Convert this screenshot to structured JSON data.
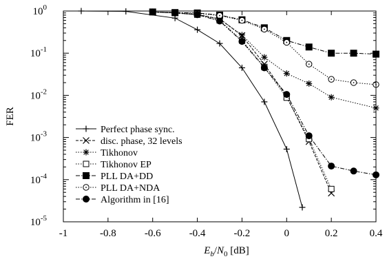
{
  "chart_data": {
    "type": "line",
    "title": "",
    "xlabel": "E_b/N_0 [dB]",
    "xlabel_parts": {
      "e": "E",
      "b": "b",
      "slash": "/",
      "n": "N",
      "zero": "0",
      "unit": " [dB]"
    },
    "ylabel": "FER",
    "xlim": [
      -1,
      0.4
    ],
    "ylim": [
      1e-05,
      1
    ],
    "yscale": "log",
    "grid": false,
    "legend_position": "bottom-left",
    "x_ticks": [
      -1,
      -0.8,
      -0.6,
      -0.4,
      -0.2,
      0,
      0.2,
      0.4
    ],
    "x_tick_labels": [
      "-1",
      "-0.8",
      "-0.6",
      "-0.4",
      "-0.2",
      "0",
      "0.2",
      "0.4"
    ],
    "y_ticks": [
      {
        "value": 1,
        "base": "10",
        "exp": "0"
      },
      {
        "value": 0.1,
        "base": "10",
        "exp": "-1"
      },
      {
        "value": 0.01,
        "base": "10",
        "exp": "-2"
      },
      {
        "value": 0.001,
        "base": "10",
        "exp": "-3"
      },
      {
        "value": 0.0001,
        "base": "10",
        "exp": "-4"
      },
      {
        "value": 1e-05,
        "base": "10",
        "exp": "-5"
      }
    ],
    "series": [
      {
        "name": "Perfect phase sync.",
        "marker": "plus",
        "dash": "solid",
        "x": [
          -0.92,
          -0.72,
          -0.5,
          -0.4,
          -0.3,
          -0.2,
          -0.1,
          0,
          0.07
        ],
        "y": [
          1,
          0.98,
          0.68,
          0.36,
          0.17,
          0.045,
          0.007,
          0.00053,
          2.2e-05
        ]
      },
      {
        "name": "disc. phase, 32 levels",
        "marker": "x",
        "dash": "dashed",
        "x": [
          -0.6,
          -0.5,
          -0.4,
          -0.3,
          -0.2,
          -0.1,
          0,
          0.1,
          0.2
        ],
        "y": [
          0.95,
          0.9,
          0.83,
          0.65,
          0.26,
          0.055,
          0.0095,
          0.0008,
          4.8e-05
        ]
      },
      {
        "name": "Tikhonov",
        "marker": "star",
        "dash": "dotted",
        "x": [
          -0.6,
          -0.5,
          -0.4,
          -0.3,
          -0.2,
          -0.1,
          0,
          0.1,
          0.2,
          0.4
        ],
        "y": [
          0.95,
          0.9,
          0.82,
          0.65,
          0.27,
          0.08,
          0.033,
          0.019,
          0.009,
          0.005
        ]
      },
      {
        "name": "Tikhonov EP",
        "marker": "square-open",
        "dash": "dotted",
        "x": [
          -0.6,
          -0.5,
          -0.4,
          -0.3,
          -0.2,
          -0.1,
          0,
          0.1,
          0.2
        ],
        "y": [
          0.95,
          0.9,
          0.82,
          0.6,
          0.2,
          0.047,
          0.0088,
          0.00092,
          6e-05
        ]
      },
      {
        "name": "PLL DA+DD",
        "marker": "square-filled",
        "dash": "dashdot",
        "x": [
          -0.6,
          -0.5,
          -0.4,
          -0.3,
          -0.2,
          -0.1,
          0,
          0.1,
          0.2,
          0.3,
          0.4
        ],
        "y": [
          0.95,
          0.92,
          0.9,
          0.8,
          0.62,
          0.4,
          0.2,
          0.14,
          0.1,
          0.1,
          0.095
        ]
      },
      {
        "name": "PLL DA+NDA",
        "marker": "circle-open",
        "dash": "dotted",
        "x": [
          -0.6,
          -0.5,
          -0.4,
          -0.3,
          -0.2,
          -0.1,
          0,
          0.1,
          0.2,
          0.3,
          0.4
        ],
        "y": [
          0.95,
          0.92,
          0.88,
          0.78,
          0.6,
          0.37,
          0.18,
          0.055,
          0.024,
          0.02,
          0.018
        ]
      },
      {
        "name": "Algorithm in [16]",
        "marker": "circle-filled",
        "dash": "dashdot",
        "x": [
          -0.6,
          -0.5,
          -0.4,
          -0.3,
          -0.2,
          -0.1,
          0,
          0.1,
          0.2,
          0.3,
          0.4
        ],
        "y": [
          0.95,
          0.9,
          0.82,
          0.58,
          0.19,
          0.045,
          0.0105,
          0.0011,
          0.00021,
          0.00016,
          0.00013
        ]
      }
    ]
  }
}
